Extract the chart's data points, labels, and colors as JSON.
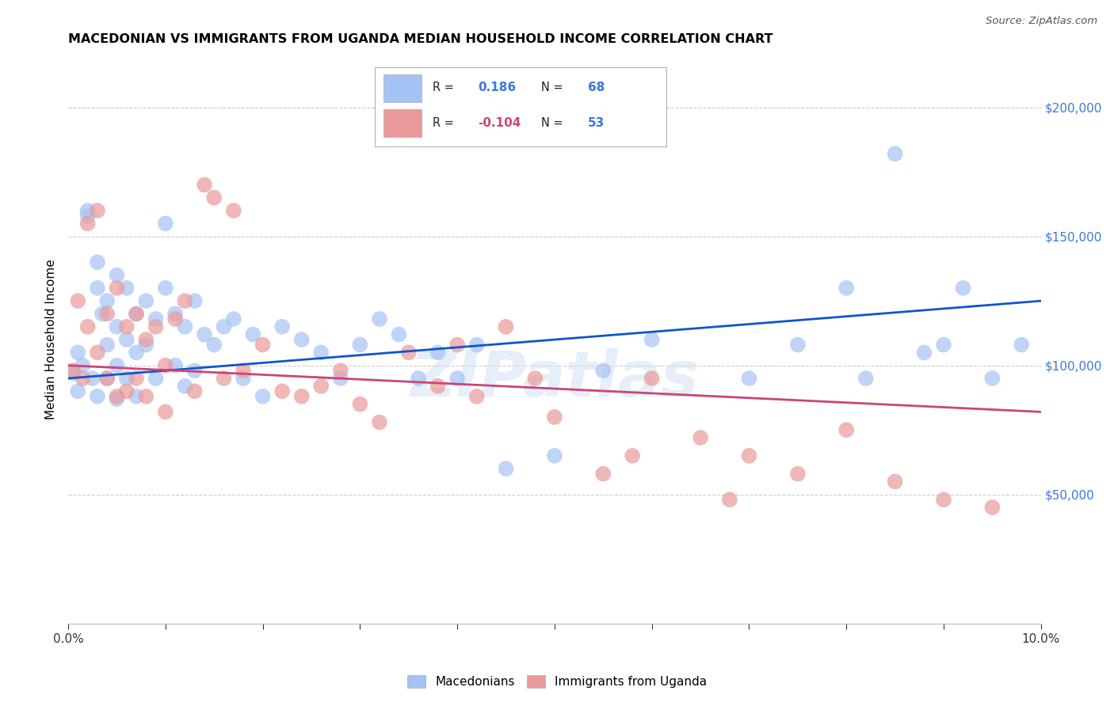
{
  "title": "MACEDONIAN VS IMMIGRANTS FROM UGANDA MEDIAN HOUSEHOLD INCOME CORRELATION CHART",
  "source": "Source: ZipAtlas.com",
  "ylabel": "Median Household Income",
  "yticks": [
    0,
    50000,
    100000,
    150000,
    200000
  ],
  "ytick_labels": [
    "",
    "$50,000",
    "$100,000",
    "$150,000",
    "$200,000"
  ],
  "xlim": [
    0.0,
    0.1
  ],
  "ylim": [
    0,
    220000
  ],
  "blue_color": "#a4c2f4",
  "pink_color": "#ea9999",
  "blue_line_color": "#1155cc",
  "pink_line_color": "#cc4477",
  "watermark": "ZIPatlas",
  "macedonian_x": [
    0.0005,
    0.001,
    0.001,
    0.0015,
    0.002,
    0.002,
    0.0025,
    0.003,
    0.003,
    0.003,
    0.0035,
    0.004,
    0.004,
    0.004,
    0.005,
    0.005,
    0.005,
    0.005,
    0.006,
    0.006,
    0.006,
    0.007,
    0.007,
    0.007,
    0.008,
    0.008,
    0.009,
    0.009,
    0.01,
    0.01,
    0.011,
    0.011,
    0.012,
    0.012,
    0.013,
    0.013,
    0.014,
    0.015,
    0.016,
    0.017,
    0.018,
    0.019,
    0.02,
    0.022,
    0.024,
    0.026,
    0.028,
    0.03,
    0.032,
    0.034,
    0.036,
    0.038,
    0.04,
    0.042,
    0.045,
    0.05,
    0.055,
    0.06,
    0.07,
    0.075,
    0.08,
    0.082,
    0.085,
    0.088,
    0.09,
    0.092,
    0.095,
    0.098
  ],
  "macedonian_y": [
    97000,
    105000,
    90000,
    100000,
    160000,
    158000,
    95000,
    140000,
    130000,
    88000,
    120000,
    125000,
    108000,
    95000,
    135000,
    115000,
    100000,
    87000,
    130000,
    110000,
    95000,
    120000,
    105000,
    88000,
    125000,
    108000,
    118000,
    95000,
    155000,
    130000,
    120000,
    100000,
    115000,
    92000,
    125000,
    98000,
    112000,
    108000,
    115000,
    118000,
    95000,
    112000,
    88000,
    115000,
    110000,
    105000,
    95000,
    108000,
    118000,
    112000,
    95000,
    105000,
    95000,
    108000,
    60000,
    65000,
    98000,
    110000,
    95000,
    108000,
    130000,
    95000,
    182000,
    105000,
    108000,
    130000,
    95000,
    108000
  ],
  "uganda_x": [
    0.0005,
    0.001,
    0.0015,
    0.002,
    0.002,
    0.003,
    0.003,
    0.004,
    0.004,
    0.005,
    0.005,
    0.006,
    0.006,
    0.007,
    0.007,
    0.008,
    0.008,
    0.009,
    0.01,
    0.01,
    0.011,
    0.012,
    0.013,
    0.014,
    0.015,
    0.016,
    0.017,
    0.018,
    0.02,
    0.022,
    0.024,
    0.026,
    0.028,
    0.03,
    0.032,
    0.035,
    0.038,
    0.04,
    0.042,
    0.045,
    0.048,
    0.05,
    0.055,
    0.058,
    0.06,
    0.065,
    0.068,
    0.07,
    0.075,
    0.08,
    0.085,
    0.09,
    0.095
  ],
  "uganda_y": [
    98000,
    125000,
    95000,
    115000,
    155000,
    160000,
    105000,
    120000,
    95000,
    130000,
    88000,
    115000,
    90000,
    120000,
    95000,
    110000,
    88000,
    115000,
    100000,
    82000,
    118000,
    125000,
    90000,
    170000,
    165000,
    95000,
    160000,
    98000,
    108000,
    90000,
    88000,
    92000,
    98000,
    85000,
    78000,
    105000,
    92000,
    108000,
    88000,
    115000,
    95000,
    80000,
    58000,
    65000,
    95000,
    72000,
    48000,
    65000,
    58000,
    75000,
    55000,
    48000,
    45000
  ]
}
